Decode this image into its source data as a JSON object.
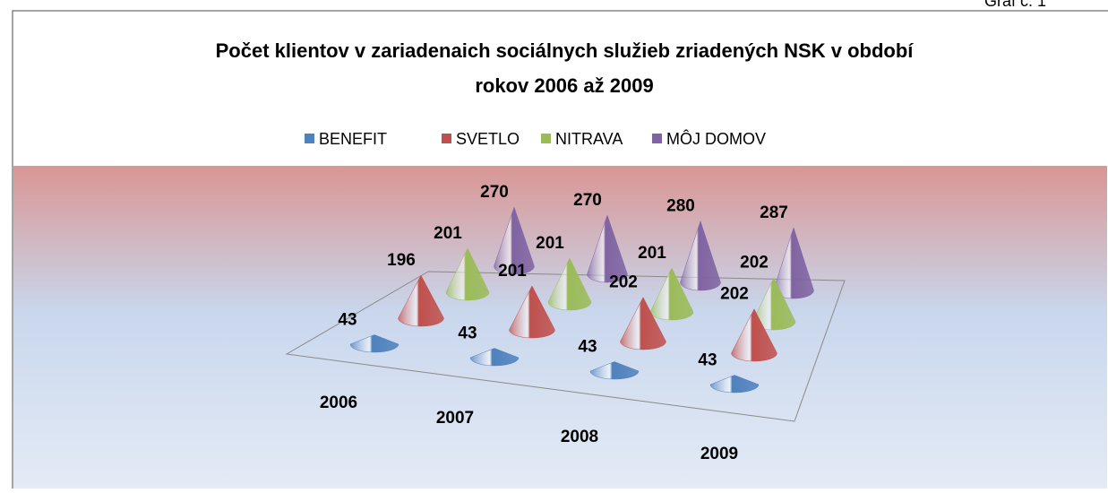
{
  "header_note": "Graf č. 1",
  "chart_data": {
    "type": "cone",
    "title": [
      "Počet klientov v zariadenaich sociálnych služieb zriadených NSK v období",
      "rokov 2006 až 2009"
    ],
    "categories": [
      "2006",
      "2007",
      "2008",
      "2009"
    ],
    "series": [
      {
        "name": "BENEFIT",
        "color": "#4f81bd",
        "values": [
          43,
          43,
          43,
          43
        ]
      },
      {
        "name": "SVETLO",
        "color": "#c0504d",
        "values": [
          196,
          201,
          202,
          202
        ]
      },
      {
        "name": "NITRAVA",
        "color": "#9bbb59",
        "values": [
          201,
          201,
          201,
          202
        ]
      },
      {
        "name": "MÔJ DOMOV",
        "color": "#8064a2",
        "values": [
          270,
          270,
          280,
          287
        ]
      }
    ],
    "legend": "top"
  }
}
